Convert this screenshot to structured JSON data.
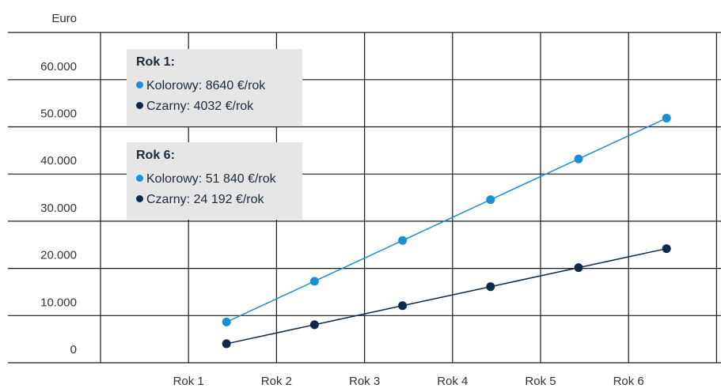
{
  "chart_data": {
    "type": "line",
    "ylabel": "Euro",
    "categories": [
      "Rok 1",
      "Rok 2",
      "Rok 3",
      "Rok 4",
      "Rok 5",
      "Rok 6"
    ],
    "y_ticks": [
      "0",
      "10.000",
      "20.000",
      "30.000",
      "40.000",
      "50.000",
      "60.000"
    ],
    "ylim": [
      0,
      70000
    ],
    "grid": true,
    "series": [
      {
        "name": "Kolorowy",
        "color": "#1a8fd1",
        "values": [
          8640,
          17280,
          25920,
          34560,
          43200,
          51840
        ]
      },
      {
        "name": "Czarny",
        "color": "#0e2a4a",
        "values": [
          4032,
          8064,
          12096,
          16128,
          20160,
          24192
        ]
      }
    ],
    "annotations": [
      {
        "title": "Rok 1:",
        "lines": [
          {
            "color": "#1a8fd1",
            "text": "Kolorowy: 8640 €/rok"
          },
          {
            "color": "#0e2a4a",
            "text": "Czarny: 4032 €/rok"
          }
        ]
      },
      {
        "title": "Rok 6:",
        "lines": [
          {
            "color": "#1a8fd1",
            "text": "Kolorowy: 51 840 €/rok"
          },
          {
            "color": "#0e2a4a",
            "text": "Czarny: 24 192 €/rok"
          }
        ]
      }
    ]
  }
}
